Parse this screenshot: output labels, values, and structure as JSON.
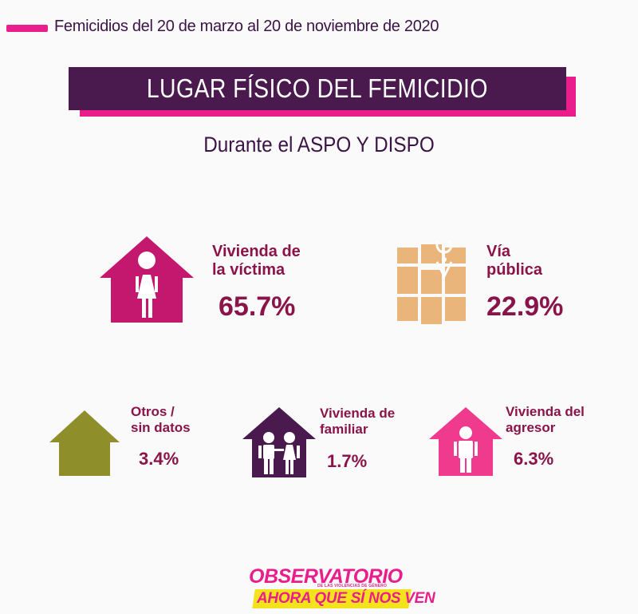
{
  "header": {
    "subtitle": "Femicidios del 20 de marzo al 20 de noviembre de 2020",
    "title": "LUGAR FÍSICO DEL FEMICIDIO",
    "period": "Durante el ASPO Y DISPO"
  },
  "categories": [
    {
      "line1": "Vivienda de",
      "line2": "la víctima",
      "value": "65.7%",
      "icon": "house-woman-icon",
      "color": "#c3186e"
    },
    {
      "line1": "Vía",
      "line2": "pública",
      "value": "22.9%",
      "icon": "map-pin-icon",
      "color": "#e9b57a"
    },
    {
      "line1": "Otros /",
      "line2": "sin datos",
      "value": "3.4%",
      "icon": "house-icon",
      "color": "#8e8f2a"
    },
    {
      "line1": "Vivienda de",
      "line2": "familiar",
      "value": "1.7%",
      "icon": "house-family-icon",
      "color": "#4a1a4e"
    },
    {
      "line1": "Vivienda del",
      "line2": "agresor",
      "value": "6.3%",
      "icon": "house-man-icon",
      "color": "#ef3a8e"
    }
  ],
  "logo": {
    "main": "OBSERVATORIO",
    "small": "DE LAS VIOLENCIAS DE GÉNERO",
    "tagline": "AHORA QUE SÍ NOS VEN"
  }
}
